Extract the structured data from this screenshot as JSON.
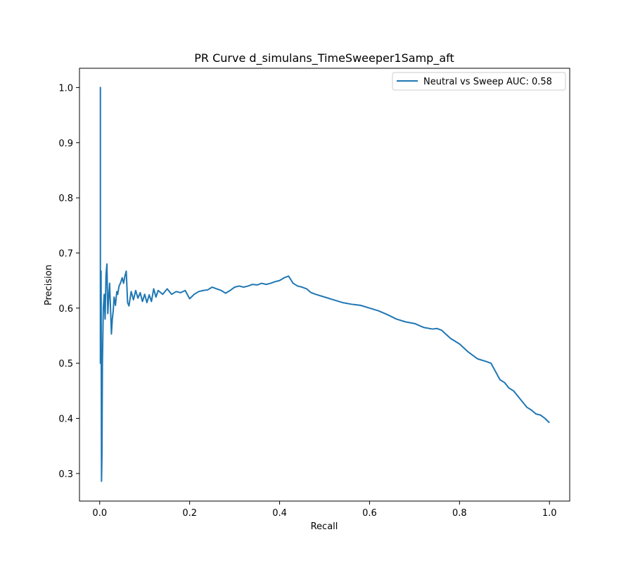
{
  "chart_data": {
    "type": "line",
    "title": "PR Curve d_simulans_TimeSweeper1Samp_aft",
    "xlabel": "Recall",
    "ylabel": "Precision",
    "xlim": [
      -0.045,
      1.045
    ],
    "ylim": [
      0.25,
      1.035
    ],
    "xticks": [
      "0.0",
      "0.2",
      "0.4",
      "0.6",
      "0.8",
      "1.0"
    ],
    "yticks": [
      "0.3",
      "0.4",
      "0.5",
      "0.6",
      "0.7",
      "0.8",
      "0.9",
      "1.0"
    ],
    "grid": false,
    "legend_position": "top-right",
    "series": [
      {
        "name": "Neutral vs Sweep AUC: 0.58",
        "color": "#1f77b4",
        "x": [
          0.0,
          0.0015,
          0.0015,
          0.003,
          0.004,
          0.005,
          0.006,
          0.008,
          0.01,
          0.012,
          0.014,
          0.016,
          0.018,
          0.02,
          0.022,
          0.024,
          0.026,
          0.028,
          0.03,
          0.032,
          0.035,
          0.038,
          0.04,
          0.043,
          0.046,
          0.05,
          0.053,
          0.056,
          0.059,
          0.062,
          0.065,
          0.07,
          0.075,
          0.08,
          0.085,
          0.09,
          0.095,
          0.1,
          0.105,
          0.11,
          0.115,
          0.12,
          0.125,
          0.13,
          0.14,
          0.15,
          0.16,
          0.17,
          0.18,
          0.19,
          0.2,
          0.21,
          0.22,
          0.23,
          0.24,
          0.25,
          0.26,
          0.27,
          0.28,
          0.29,
          0.3,
          0.31,
          0.32,
          0.33,
          0.34,
          0.35,
          0.36,
          0.37,
          0.38,
          0.39,
          0.4,
          0.41,
          0.42,
          0.43,
          0.44,
          0.45,
          0.46,
          0.47,
          0.48,
          0.5,
          0.52,
          0.54,
          0.56,
          0.58,
          0.6,
          0.62,
          0.64,
          0.66,
          0.68,
          0.7,
          0.72,
          0.74,
          0.75,
          0.76,
          0.78,
          0.8,
          0.82,
          0.84,
          0.86,
          0.87,
          0.88,
          0.89,
          0.9,
          0.91,
          0.92,
          0.93,
          0.94,
          0.95,
          0.96,
          0.97,
          0.98,
          0.99,
          1.0
        ],
        "y": [
          1.0,
          1.0,
          0.5,
          0.667,
          0.286,
          0.333,
          0.5,
          0.6,
          0.625,
          0.58,
          0.66,
          0.68,
          0.59,
          0.62,
          0.645,
          0.6,
          0.553,
          0.58,
          0.595,
          0.62,
          0.605,
          0.63,
          0.625,
          0.64,
          0.645,
          0.655,
          0.645,
          0.658,
          0.667,
          0.61,
          0.604,
          0.63,
          0.615,
          0.632,
          0.618,
          0.628,
          0.612,
          0.625,
          0.61,
          0.624,
          0.612,
          0.635,
          0.62,
          0.632,
          0.625,
          0.635,
          0.625,
          0.63,
          0.628,
          0.632,
          0.617,
          0.625,
          0.63,
          0.632,
          0.633,
          0.638,
          0.635,
          0.632,
          0.627,
          0.632,
          0.638,
          0.64,
          0.638,
          0.64,
          0.643,
          0.642,
          0.645,
          0.643,
          0.645,
          0.648,
          0.65,
          0.655,
          0.658,
          0.645,
          0.64,
          0.638,
          0.635,
          0.628,
          0.625,
          0.62,
          0.615,
          0.61,
          0.607,
          0.605,
          0.6,
          0.595,
          0.588,
          0.58,
          0.575,
          0.572,
          0.565,
          0.562,
          0.563,
          0.56,
          0.545,
          0.535,
          0.52,
          0.508,
          0.503,
          0.5,
          0.485,
          0.47,
          0.465,
          0.455,
          0.45,
          0.44,
          0.43,
          0.42,
          0.415,
          0.408,
          0.406,
          0.4,
          0.392
        ]
      }
    ]
  }
}
